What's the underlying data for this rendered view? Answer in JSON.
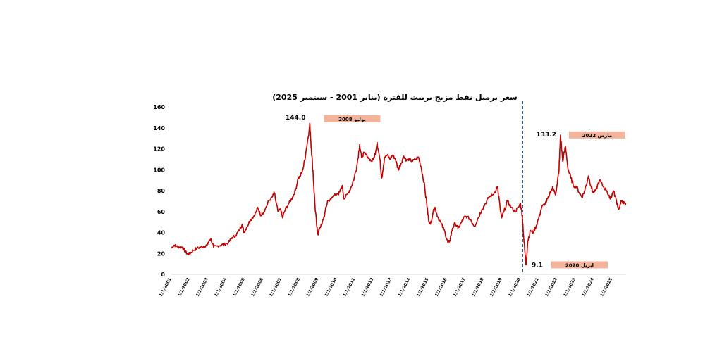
{
  "chart_data": {
    "type": "line",
    "title": "سعر برميل نفط مزيج برينت للفترة (يناير 2001 - سبتمبر 2025)",
    "xlabel": "",
    "ylabel": "",
    "ylim": [
      0,
      160
    ],
    "yticks": [
      "0",
      "20",
      "40",
      "60",
      "80",
      "100",
      "120",
      "140",
      "160"
    ],
    "grid": false,
    "legend": "none",
    "line_color": "#c00000",
    "xticks": [
      {
        "label": "1/1/2001",
        "x": 2001.0
      },
      {
        "label": "1/1/2002",
        "x": 2002.0
      },
      {
        "label": "1/1/2003",
        "x": 2003.0
      },
      {
        "label": "1/1/2004",
        "x": 2004.0
      },
      {
        "label": "1/1/2005",
        "x": 2005.0
      },
      {
        "label": "1/1/2006",
        "x": 2006.0
      },
      {
        "label": "1/1/2007",
        "x": 2007.0
      },
      {
        "label": "1/1/2008",
        "x": 2008.0
      },
      {
        "label": "1/1/2009",
        "x": 2009.0
      },
      {
        "label": "1/1/2010",
        "x": 2010.0
      },
      {
        "label": "1/1/2011",
        "x": 2011.0
      },
      {
        "label": "1/1/2012",
        "x": 2012.0
      },
      {
        "label": "1/1/2013",
        "x": 2013.0
      },
      {
        "label": "1/1/2014",
        "x": 2014.0
      },
      {
        "label": "1/1/2015",
        "x": 2015.0
      },
      {
        "label": "1/1/2016",
        "x": 2016.0
      },
      {
        "label": "1/1/2017",
        "x": 2017.0
      },
      {
        "label": "1/1/2018",
        "x": 2018.0
      },
      {
        "label": "1/1/2019",
        "x": 2019.0
      },
      {
        "label": "1/1/2020",
        "x": 2020.0
      },
      {
        "label": "1/1/2021",
        "x": 2021.0
      },
      {
        "label": "1/1/2022",
        "x": 2022.0
      },
      {
        "label": "1/1/2023",
        "x": 2023.0
      },
      {
        "label": "1/1/2024",
        "x": 2024.0
      },
      {
        "label": "1/1/2025",
        "x": 2025.0
      }
    ],
    "series": [
      {
        "points": [
          [
            2001.0,
            25
          ],
          [
            2001.15,
            28
          ],
          [
            2001.3,
            27
          ],
          [
            2001.45,
            26
          ],
          [
            2001.6,
            26
          ],
          [
            2001.75,
            22
          ],
          [
            2001.9,
            19
          ],
          [
            2002.0,
            20
          ],
          [
            2002.2,
            23
          ],
          [
            2002.4,
            25
          ],
          [
            2002.6,
            26
          ],
          [
            2002.8,
            27
          ],
          [
            2002.95,
            28
          ],
          [
            2003.05,
            32
          ],
          [
            2003.15,
            34
          ],
          [
            2003.3,
            26
          ],
          [
            2003.5,
            27
          ],
          [
            2003.7,
            28
          ],
          [
            2003.9,
            29
          ],
          [
            2004.1,
            30
          ],
          [
            2004.3,
            35
          ],
          [
            2004.5,
            37
          ],
          [
            2004.7,
            42
          ],
          [
            2004.85,
            48
          ],
          [
            2004.95,
            40
          ],
          [
            2005.1,
            45
          ],
          [
            2005.3,
            52
          ],
          [
            2005.5,
            56
          ],
          [
            2005.7,
            64
          ],
          [
            2005.85,
            56
          ],
          [
            2005.95,
            58
          ],
          [
            2006.1,
            62
          ],
          [
            2006.3,
            70
          ],
          [
            2006.5,
            74
          ],
          [
            2006.6,
            78
          ],
          [
            2006.8,
            60
          ],
          [
            2006.95,
            62
          ],
          [
            2007.05,
            54
          ],
          [
            2007.2,
            62
          ],
          [
            2007.4,
            68
          ],
          [
            2007.6,
            74
          ],
          [
            2007.75,
            80
          ],
          [
            2007.9,
            92
          ],
          [
            2008.0,
            93
          ],
          [
            2008.2,
            103
          ],
          [
            2008.35,
            120
          ],
          [
            2008.5,
            138
          ],
          [
            2008.54,
            144
          ],
          [
            2008.62,
            120
          ],
          [
            2008.72,
            95
          ],
          [
            2008.82,
            65
          ],
          [
            2008.92,
            45
          ],
          [
            2008.98,
            38
          ],
          [
            2009.05,
            44
          ],
          [
            2009.2,
            48
          ],
          [
            2009.35,
            58
          ],
          [
            2009.5,
            70
          ],
          [
            2009.7,
            72
          ],
          [
            2009.9,
            77
          ],
          [
            2010.1,
            76
          ],
          [
            2010.3,
            85
          ],
          [
            2010.4,
            72
          ],
          [
            2010.6,
            77
          ],
          [
            2010.8,
            84
          ],
          [
            2010.95,
            92
          ],
          [
            2011.1,
            104
          ],
          [
            2011.25,
            124
          ],
          [
            2011.35,
            112
          ],
          [
            2011.5,
            116
          ],
          [
            2011.7,
            112
          ],
          [
            2011.9,
            108
          ],
          [
            2012.05,
            112
          ],
          [
            2012.2,
            126
          ],
          [
            2012.35,
            110
          ],
          [
            2012.45,
            92
          ],
          [
            2012.6,
            112
          ],
          [
            2012.75,
            114
          ],
          [
            2012.9,
            110
          ],
          [
            2013.05,
            114
          ],
          [
            2013.2,
            110
          ],
          [
            2013.35,
            100
          ],
          [
            2013.5,
            106
          ],
          [
            2013.65,
            113
          ],
          [
            2013.8,
            109
          ],
          [
            2013.95,
            110
          ],
          [
            2014.1,
            108
          ],
          [
            2014.3,
            110
          ],
          [
            2014.45,
            112
          ],
          [
            2014.6,
            102
          ],
          [
            2014.75,
            88
          ],
          [
            2014.9,
            68
          ],
          [
            2015.0,
            52
          ],
          [
            2015.1,
            48
          ],
          [
            2015.25,
            60
          ],
          [
            2015.35,
            64
          ],
          [
            2015.5,
            55
          ],
          [
            2015.7,
            48
          ],
          [
            2015.9,
            40
          ],
          [
            2016.05,
            30
          ],
          [
            2016.15,
            32
          ],
          [
            2016.3,
            44
          ],
          [
            2016.45,
            49
          ],
          [
            2016.6,
            44
          ],
          [
            2016.8,
            50
          ],
          [
            2016.95,
            55
          ],
          [
            2017.1,
            55
          ],
          [
            2017.3,
            52
          ],
          [
            2017.5,
            46
          ],
          [
            2017.7,
            54
          ],
          [
            2017.9,
            62
          ],
          [
            2018.1,
            68
          ],
          [
            2018.3,
            74
          ],
          [
            2018.5,
            76
          ],
          [
            2018.75,
            84
          ],
          [
            2018.9,
            62
          ],
          [
            2018.98,
            54
          ],
          [
            2019.1,
            60
          ],
          [
            2019.3,
            70
          ],
          [
            2019.5,
            64
          ],
          [
            2019.7,
            60
          ],
          [
            2019.9,
            64
          ],
          [
            2020.0,
            68
          ],
          [
            2020.1,
            56
          ],
          [
            2020.2,
            30
          ],
          [
            2020.3,
            9.1
          ],
          [
            2020.4,
            32
          ],
          [
            2020.55,
            42
          ],
          [
            2020.7,
            40
          ],
          [
            2020.85,
            46
          ],
          [
            2021.0,
            54
          ],
          [
            2021.15,
            64
          ],
          [
            2021.35,
            68
          ],
          [
            2021.55,
            74
          ],
          [
            2021.75,
            84
          ],
          [
            2021.9,
            76
          ],
          [
            2022.0,
            86
          ],
          [
            2022.1,
            100
          ],
          [
            2022.18,
            133.2
          ],
          [
            2022.3,
            108
          ],
          [
            2022.45,
            122
          ],
          [
            2022.6,
            100
          ],
          [
            2022.75,
            92
          ],
          [
            2022.9,
            84
          ],
          [
            2023.05,
            84
          ],
          [
            2023.2,
            78
          ],
          [
            2023.35,
            74
          ],
          [
            2023.5,
            80
          ],
          [
            2023.7,
            94
          ],
          [
            2023.85,
            84
          ],
          [
            2023.95,
            78
          ],
          [
            2024.1,
            80
          ],
          [
            2024.3,
            90
          ],
          [
            2024.5,
            84
          ],
          [
            2024.7,
            80
          ],
          [
            2024.85,
            73
          ],
          [
            2024.95,
            74
          ],
          [
            2025.05,
            80
          ],
          [
            2025.2,
            72
          ],
          [
            2025.35,
            62
          ],
          [
            2025.5,
            70
          ],
          [
            2025.65,
            68
          ],
          [
            2025.75,
            67
          ]
        ]
      }
    ],
    "vline": {
      "x": 2020.12,
      "style": "dashed",
      "color": "#1f4e79"
    },
    "annotations": [
      {
        "value": "144.0",
        "label": "يوليو 2008",
        "x": 2008.54,
        "y": 144.0
      },
      {
        "value": "133.2",
        "label": "مارس 2022",
        "x": 2022.18,
        "y": 133.2
      },
      {
        "value": "9.1",
        "label": "ابريل 2020",
        "x": 2020.3,
        "y": 9.1
      }
    ],
    "annotation_box_color": "#f4b49b"
  }
}
